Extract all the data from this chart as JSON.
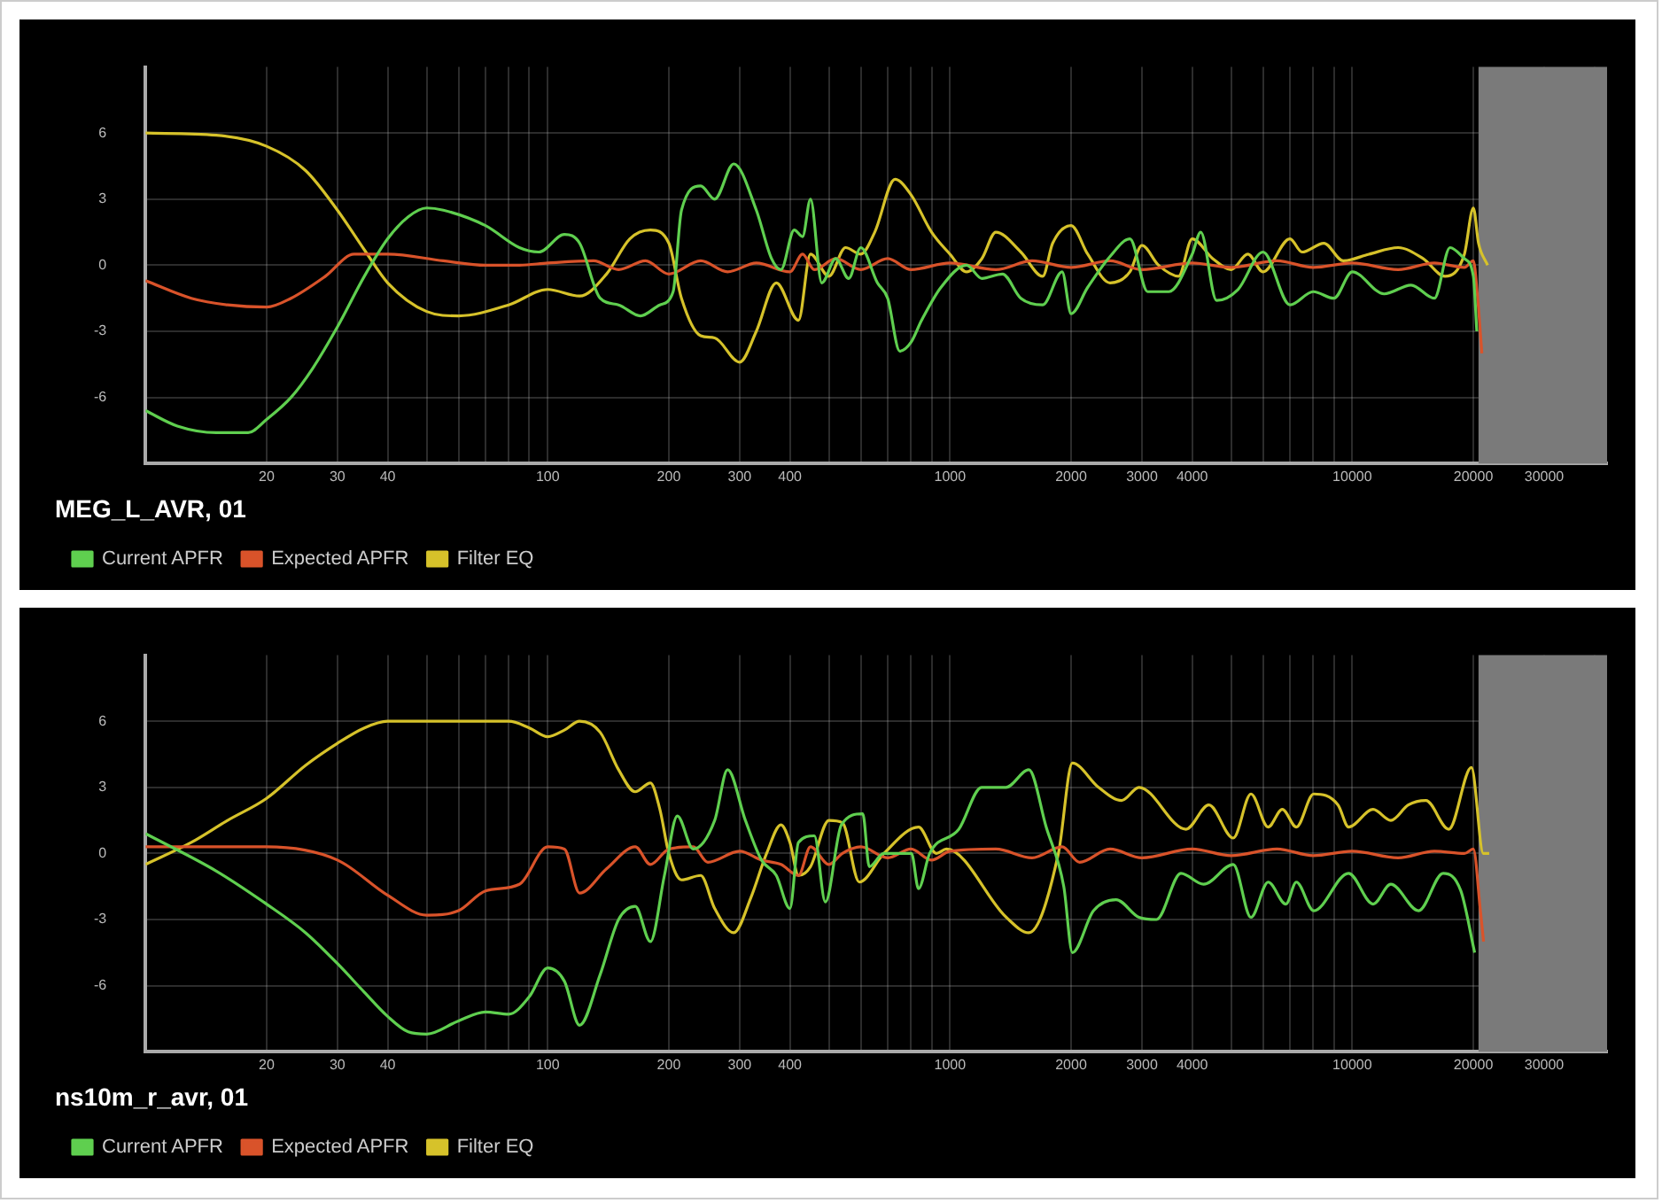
{
  "chart_data": [
    {
      "type": "line",
      "legend_title": "MEG_L_AVR, 01",
      "log": "x",
      "grid": true,
      "legend": "bottom left",
      "marker": "none",
      "line_style": "solid",
      "xlim": [
        10,
        43000
      ],
      "ylim": [
        -9,
        9
      ],
      "xticks": [
        20,
        30,
        40,
        {
          "value": 50,
          "label": null
        },
        {
          "value": 60,
          "label": null
        },
        {
          "value": 70,
          "label": null
        },
        {
          "value": 80,
          "label": null
        },
        {
          "value": 90,
          "label": null
        },
        100,
        200,
        300,
        400,
        {
          "value": 500,
          "label": null
        },
        {
          "value": 600,
          "label": null
        },
        {
          "value": 700,
          "label": null
        },
        {
          "value": 800,
          "label": null
        },
        {
          "value": 900,
          "label": null
        },
        1000,
        2000,
        3000,
        4000,
        {
          "value": 5000,
          "label": null
        },
        {
          "value": 6000,
          "label": null
        },
        {
          "value": 7000,
          "label": null
        },
        {
          "value": 8000,
          "label": null
        },
        {
          "value": 9000,
          "label": null
        },
        10000,
        20000,
        30000,
        {
          "value": 40000,
          "label": null
        }
      ],
      "yticks": [
        -6,
        -3,
        0,
        3,
        6
      ],
      "bands": [
        {
          "axis": "x",
          "from": 20600,
          "to": 43000,
          "color": "#7a7a7a"
        }
      ],
      "series": [
        {
          "name": "Current APFR",
          "color": "#5fcf4f",
          "x": [
            10,
            12,
            15,
            18,
            20,
            23,
            26,
            30,
            35,
            40,
            45,
            50,
            55,
            70,
            85,
            95,
            110,
            120,
            135,
            150,
            170,
            190,
            205,
            215,
            240,
            260,
            290,
            330,
            360,
            380,
            410,
            430,
            450,
            480,
            520,
            560,
            600,
            660,
            700,
            750,
            800,
            850,
            950,
            1100,
            1200,
            1350,
            1500,
            1700,
            1900,
            2000,
            2200,
            2500,
            2800,
            3100,
            3500,
            4000,
            4200,
            4600,
            5200,
            6000,
            7000,
            8000,
            9000,
            10000,
            12000,
            14000,
            16000,
            17500,
            19000,
            20000,
            20400
          ],
          "values": [
            -6.6,
            -7.3,
            -7.6,
            -7.6,
            -7.0,
            -6.0,
            -4.7,
            -2.8,
            -0.5,
            1.2,
            2.2,
            2.6,
            2.5,
            1.8,
            0.8,
            0.6,
            1.4,
            1.0,
            -1.5,
            -1.8,
            -2.3,
            -1.8,
            -1.2,
            2.5,
            3.6,
            3.0,
            4.6,
            2.5,
            0.3,
            -0.2,
            1.6,
            1.3,
            3.0,
            -0.8,
            0.3,
            -0.6,
            0.8,
            -0.8,
            -1.5,
            -3.9,
            -3.5,
            -2.5,
            -1.0,
            0,
            -0.6,
            -0.4,
            -1.5,
            -1.8,
            -0.3,
            -2.2,
            -1.0,
            0.4,
            1.2,
            -1.2,
            -1.2,
            0.5,
            1.5,
            -1.6,
            -1.1,
            0.6,
            -1.8,
            -1.2,
            -1.5,
            -0.3,
            -1.3,
            -0.9,
            -1.5,
            0.8,
            0.3,
            -0.5,
            -3.0
          ]
        },
        {
          "name": "Expected APFR",
          "color": "#d9532a",
          "x": [
            10,
            13,
            16,
            20,
            23,
            28,
            33,
            40,
            55,
            70,
            85,
            100,
            130,
            150,
            175,
            200,
            240,
            280,
            330,
            400,
            430,
            460,
            520,
            600,
            700,
            800,
            1000,
            1300,
            1600,
            2000,
            2500,
            3000,
            4000,
            5000,
            6500,
            8000,
            10000,
            13000,
            16000,
            19000,
            20000,
            20500,
            21000
          ],
          "values": [
            -0.7,
            -1.5,
            -1.8,
            -1.9,
            -1.5,
            -0.5,
            0.5,
            0.5,
            0.2,
            0,
            0,
            0.1,
            0.2,
            -0.2,
            0.2,
            -0.4,
            0.2,
            -0.3,
            0.1,
            -0.3,
            0.5,
            -0.2,
            0.3,
            -0.2,
            0.3,
            -0.2,
            0.1,
            -0.2,
            0.2,
            -0.1,
            0.2,
            -0.2,
            0.1,
            -0.1,
            0.2,
            -0.1,
            0.1,
            -0.2,
            0.1,
            -0.1,
            0.2,
            -1.5,
            -4
          ]
        },
        {
          "name": "Filter EQ",
          "color": "#d6c22a",
          "x": [
            10,
            15,
            20,
            25,
            30,
            35,
            40,
            50,
            60,
            80,
            100,
            120,
            140,
            160,
            180,
            200,
            215,
            240,
            260,
            300,
            330,
            370,
            420,
            450,
            500,
            550,
            600,
            650,
            730,
            800,
            900,
            1000,
            1100,
            1200,
            1300,
            1500,
            1700,
            1800,
            2000,
            2200,
            2500,
            2800,
            3000,
            3300,
            3700,
            4000,
            4500,
            5000,
            5500,
            6000,
            7000,
            7500,
            8500,
            9500,
            11000,
            13000,
            15000,
            17000,
            19000,
            20000,
            20600,
            21700
          ],
          "values": [
            6,
            5.9,
            5.4,
            4.3,
            2.5,
            0.7,
            -0.8,
            -2.1,
            -2.3,
            -1.8,
            -1.1,
            -1.4,
            -0.4,
            1.2,
            1.6,
            1.0,
            -1.5,
            -3.2,
            -3.3,
            -4.4,
            -3.0,
            -0.8,
            -2.5,
            0.5,
            -0.5,
            0.8,
            0.5,
            1.5,
            3.9,
            3.2,
            1.5,
            0.5,
            -0.3,
            0.3,
            1.5,
            0.6,
            -0.5,
            1.0,
            1.8,
            0.5,
            -0.8,
            -0.3,
            0.9,
            0,
            -0.5,
            1.2,
            0.3,
            -0.2,
            0.5,
            -0.3,
            1.2,
            0.6,
            1.0,
            0.2,
            0.5,
            0.8,
            0.3,
            -0.5,
            0.5,
            2.6,
            1.0,
            0
          ]
        }
      ]
    },
    {
      "type": "line",
      "legend_title": "ns10m_r_avr, 01",
      "log": "x",
      "grid": true,
      "legend": "bottom left",
      "marker": "none",
      "line_style": "solid",
      "xlim": [
        10,
        43000
      ],
      "ylim": [
        -9,
        9
      ],
      "xticks": [
        20,
        30,
        40,
        {
          "value": 50,
          "label": null
        },
        {
          "value": 60,
          "label": null
        },
        {
          "value": 70,
          "label": null
        },
        {
          "value": 80,
          "label": null
        },
        {
          "value": 90,
          "label": null
        },
        100,
        200,
        300,
        400,
        {
          "value": 500,
          "label": null
        },
        {
          "value": 600,
          "label": null
        },
        {
          "value": 700,
          "label": null
        },
        {
          "value": 800,
          "label": null
        },
        {
          "value": 900,
          "label": null
        },
        1000,
        2000,
        3000,
        4000,
        {
          "value": 5000,
          "label": null
        },
        {
          "value": 6000,
          "label": null
        },
        {
          "value": 7000,
          "label": null
        },
        {
          "value": 8000,
          "label": null
        },
        {
          "value": 9000,
          "label": null
        },
        10000,
        20000,
        30000,
        {
          "value": 40000,
          "label": null
        }
      ],
      "yticks": [
        -6,
        -3,
        0,
        3,
        6
      ],
      "bands": [
        {
          "axis": "x",
          "from": 20600,
          "to": 43000,
          "color": "#7a7a7a"
        }
      ],
      "series": [
        {
          "name": "Current APFR",
          "color": "#5fcf4f",
          "x": [
            10,
            15,
            20,
            25,
            30,
            35,
            40,
            45,
            50,
            60,
            70,
            80,
            90,
            100,
            110,
            120,
            135,
            150,
            165,
            180,
            195,
            210,
            230,
            260,
            280,
            310,
            340,
            370,
            400,
            420,
            460,
            490,
            537,
            607,
            630,
            684,
            802,
            835,
            890,
            1052,
            1198,
            1377,
            1570,
            1734,
            1918,
            2015,
            2274,
            2588,
            2950,
            3260,
            3750,
            4270,
            5060,
            5600,
            6180,
            6840,
            7260,
            8020,
            9790,
            11270,
            12470,
            14620,
            16830,
            18620,
            20150
          ],
          "values": [
            0.9,
            -0.8,
            -2.3,
            -3.6,
            -5.0,
            -6.3,
            -7.4,
            -8.1,
            -8.2,
            -7.6,
            -7.2,
            -7.3,
            -6.5,
            -5.2,
            -5.8,
            -7.8,
            -5.5,
            -3.0,
            -2.4,
            -4.0,
            -1.0,
            1.7,
            0.2,
            1.5,
            3.8,
            1.5,
            -0.3,
            -1.0,
            -2.5,
            0.5,
            0.8,
            -2.2,
            1.3,
            1.8,
            -0.6,
            0,
            0,
            -1.6,
            0,
            1.1,
            3.0,
            3.0,
            3.8,
            1.2,
            -1.5,
            -4.5,
            -2.6,
            -2.1,
            -2.9,
            -3.0,
            -0.9,
            -1.4,
            -0.5,
            -2.9,
            -1.3,
            -2.3,
            -1.3,
            -2.6,
            -0.9,
            -2.3,
            -1.4,
            -2.6,
            -0.9,
            -1.7,
            -4.5
          ]
        },
        {
          "name": "Expected APFR",
          "color": "#d9532a",
          "x": [
            10,
            20,
            30,
            40,
            50,
            60,
            70,
            85,
            100,
            110,
            120,
            140,
            165,
            180,
            200,
            230,
            250,
            300,
            340,
            380,
            420,
            450,
            500,
            540,
            600,
            700,
            800,
            900,
            1000,
            1300,
            1600,
            1900,
            2100,
            2500,
            3000,
            4000,
            5000,
            6500,
            8000,
            10000,
            13000,
            16000,
            19000,
            20000,
            20800,
            21200
          ],
          "values": [
            0.3,
            0.3,
            -0.3,
            -1.9,
            -2.8,
            -2.6,
            -1.7,
            -1.4,
            0.3,
            0.2,
            -1.8,
            -0.7,
            0.3,
            -0.5,
            0.2,
            0.3,
            -0.4,
            0.1,
            -0.3,
            -0.5,
            -1.0,
            0.3,
            -0.5,
            0,
            0.3,
            -0.2,
            0.2,
            -0.3,
            0.1,
            0.2,
            -0.2,
            0.3,
            -0.4,
            0.2,
            -0.2,
            0.2,
            -0.1,
            0.2,
            -0.1,
            0.1,
            -0.2,
            0.1,
            0,
            0.2,
            -2.5,
            -4
          ]
        },
        {
          "name": "Filter EQ",
          "color": "#d6c22a",
          "x": [
            10,
            13,
            16,
            20,
            25,
            30,
            35,
            40,
            60,
            80,
            90,
            100,
            110,
            120,
            135,
            150,
            165,
            180,
            190,
            200,
            215,
            240,
            260,
            290,
            320,
            350,
            380,
            400,
            420,
            450,
            500,
            540,
            595,
            685,
            835,
            925,
            980,
            1380,
            1570,
            1860,
            2015,
            2340,
            2670,
            2950,
            3860,
            4400,
            5060,
            5600,
            6180,
            6700,
            7260,
            8020,
            9220,
            9790,
            11270,
            12470,
            13780,
            15240,
            17380,
            19780,
            21180,
            21900
          ],
          "values": [
            -0.5,
            0.5,
            1.5,
            2.5,
            4.0,
            5.0,
            5.7,
            6,
            6,
            6,
            5.7,
            5.3,
            5.6,
            6,
            5.5,
            3.8,
            2.8,
            3.2,
            2.0,
            0,
            -1.2,
            -1.0,
            -2.5,
            -3.6,
            -2.0,
            0,
            1.3,
            0.5,
            -1,
            -0.6,
            1.5,
            1.4,
            -1.3,
            0,
            1.2,
            0,
            0.2,
            -2.9,
            -3.6,
            0,
            4.1,
            3.0,
            2.4,
            3.0,
            1.1,
            2.2,
            0.7,
            2.7,
            1.2,
            2.0,
            1.2,
            2.7,
            2.2,
            1.2,
            2.0,
            1.5,
            2.2,
            2.4,
            1.1,
            3.9,
            0,
            0
          ]
        }
      ]
    }
  ]
}
